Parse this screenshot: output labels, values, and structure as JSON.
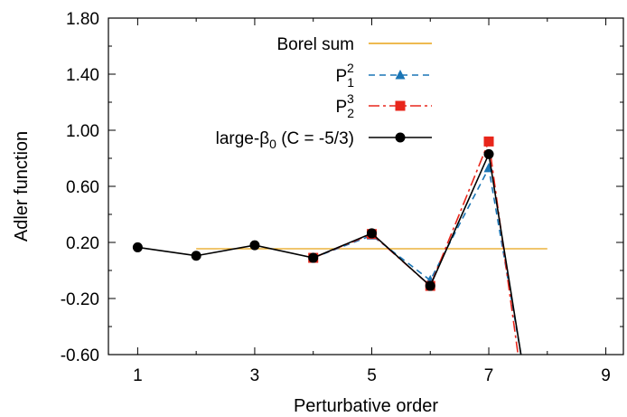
{
  "chart_data": {
    "type": "line",
    "xlabel": "Perturbative order",
    "ylabel": "Adler function",
    "xlim": [
      0.5,
      9.3
    ],
    "ylim": [
      -0.6,
      1.8
    ],
    "xticks": [
      1,
      3,
      5,
      7,
      9
    ],
    "yticks": [
      -0.6,
      -0.2,
      0.2,
      0.6,
      1.0,
      1.4,
      1.8
    ],
    "ytick_labels": [
      "-0.60",
      "-0.20",
      "0.20",
      "0.60",
      "1.00",
      "1.40",
      "1.80"
    ],
    "legend_position": "top-right",
    "series": [
      {
        "name": "Borel sum",
        "color": "#e8a317",
        "style": "solid",
        "x": [
          2,
          8
        ],
        "y": [
          0.155,
          0.155
        ]
      },
      {
        "name": "P",
        "sub": "1",
        "sup": "2",
        "color": "#1a75b5",
        "style": "dashed",
        "marker": "triangle",
        "x": [
          4,
          5,
          6,
          7,
          7.55
        ],
        "y": [
          0.09,
          0.25,
          -0.07,
          0.73,
          -0.6
        ]
      },
      {
        "name": "P",
        "sub": "2",
        "sup": "3",
        "color": "#e8261b",
        "style": "dash-dot",
        "marker": "square",
        "x": [
          4,
          5,
          6,
          7,
          7.5
        ],
        "y": [
          0.09,
          0.26,
          -0.11,
          0.92,
          -0.6
        ]
      },
      {
        "name": "large-",
        "greek": "β",
        "sub": "0",
        "suffix": " (C = -5/3)",
        "color": "#000000",
        "style": "solid",
        "marker": "circle",
        "x": [
          1,
          2,
          3,
          4,
          5,
          6,
          7,
          7.55
        ],
        "y": [
          0.165,
          0.105,
          0.18,
          0.09,
          0.265,
          -0.11,
          0.83,
          -0.6
        ]
      }
    ]
  }
}
